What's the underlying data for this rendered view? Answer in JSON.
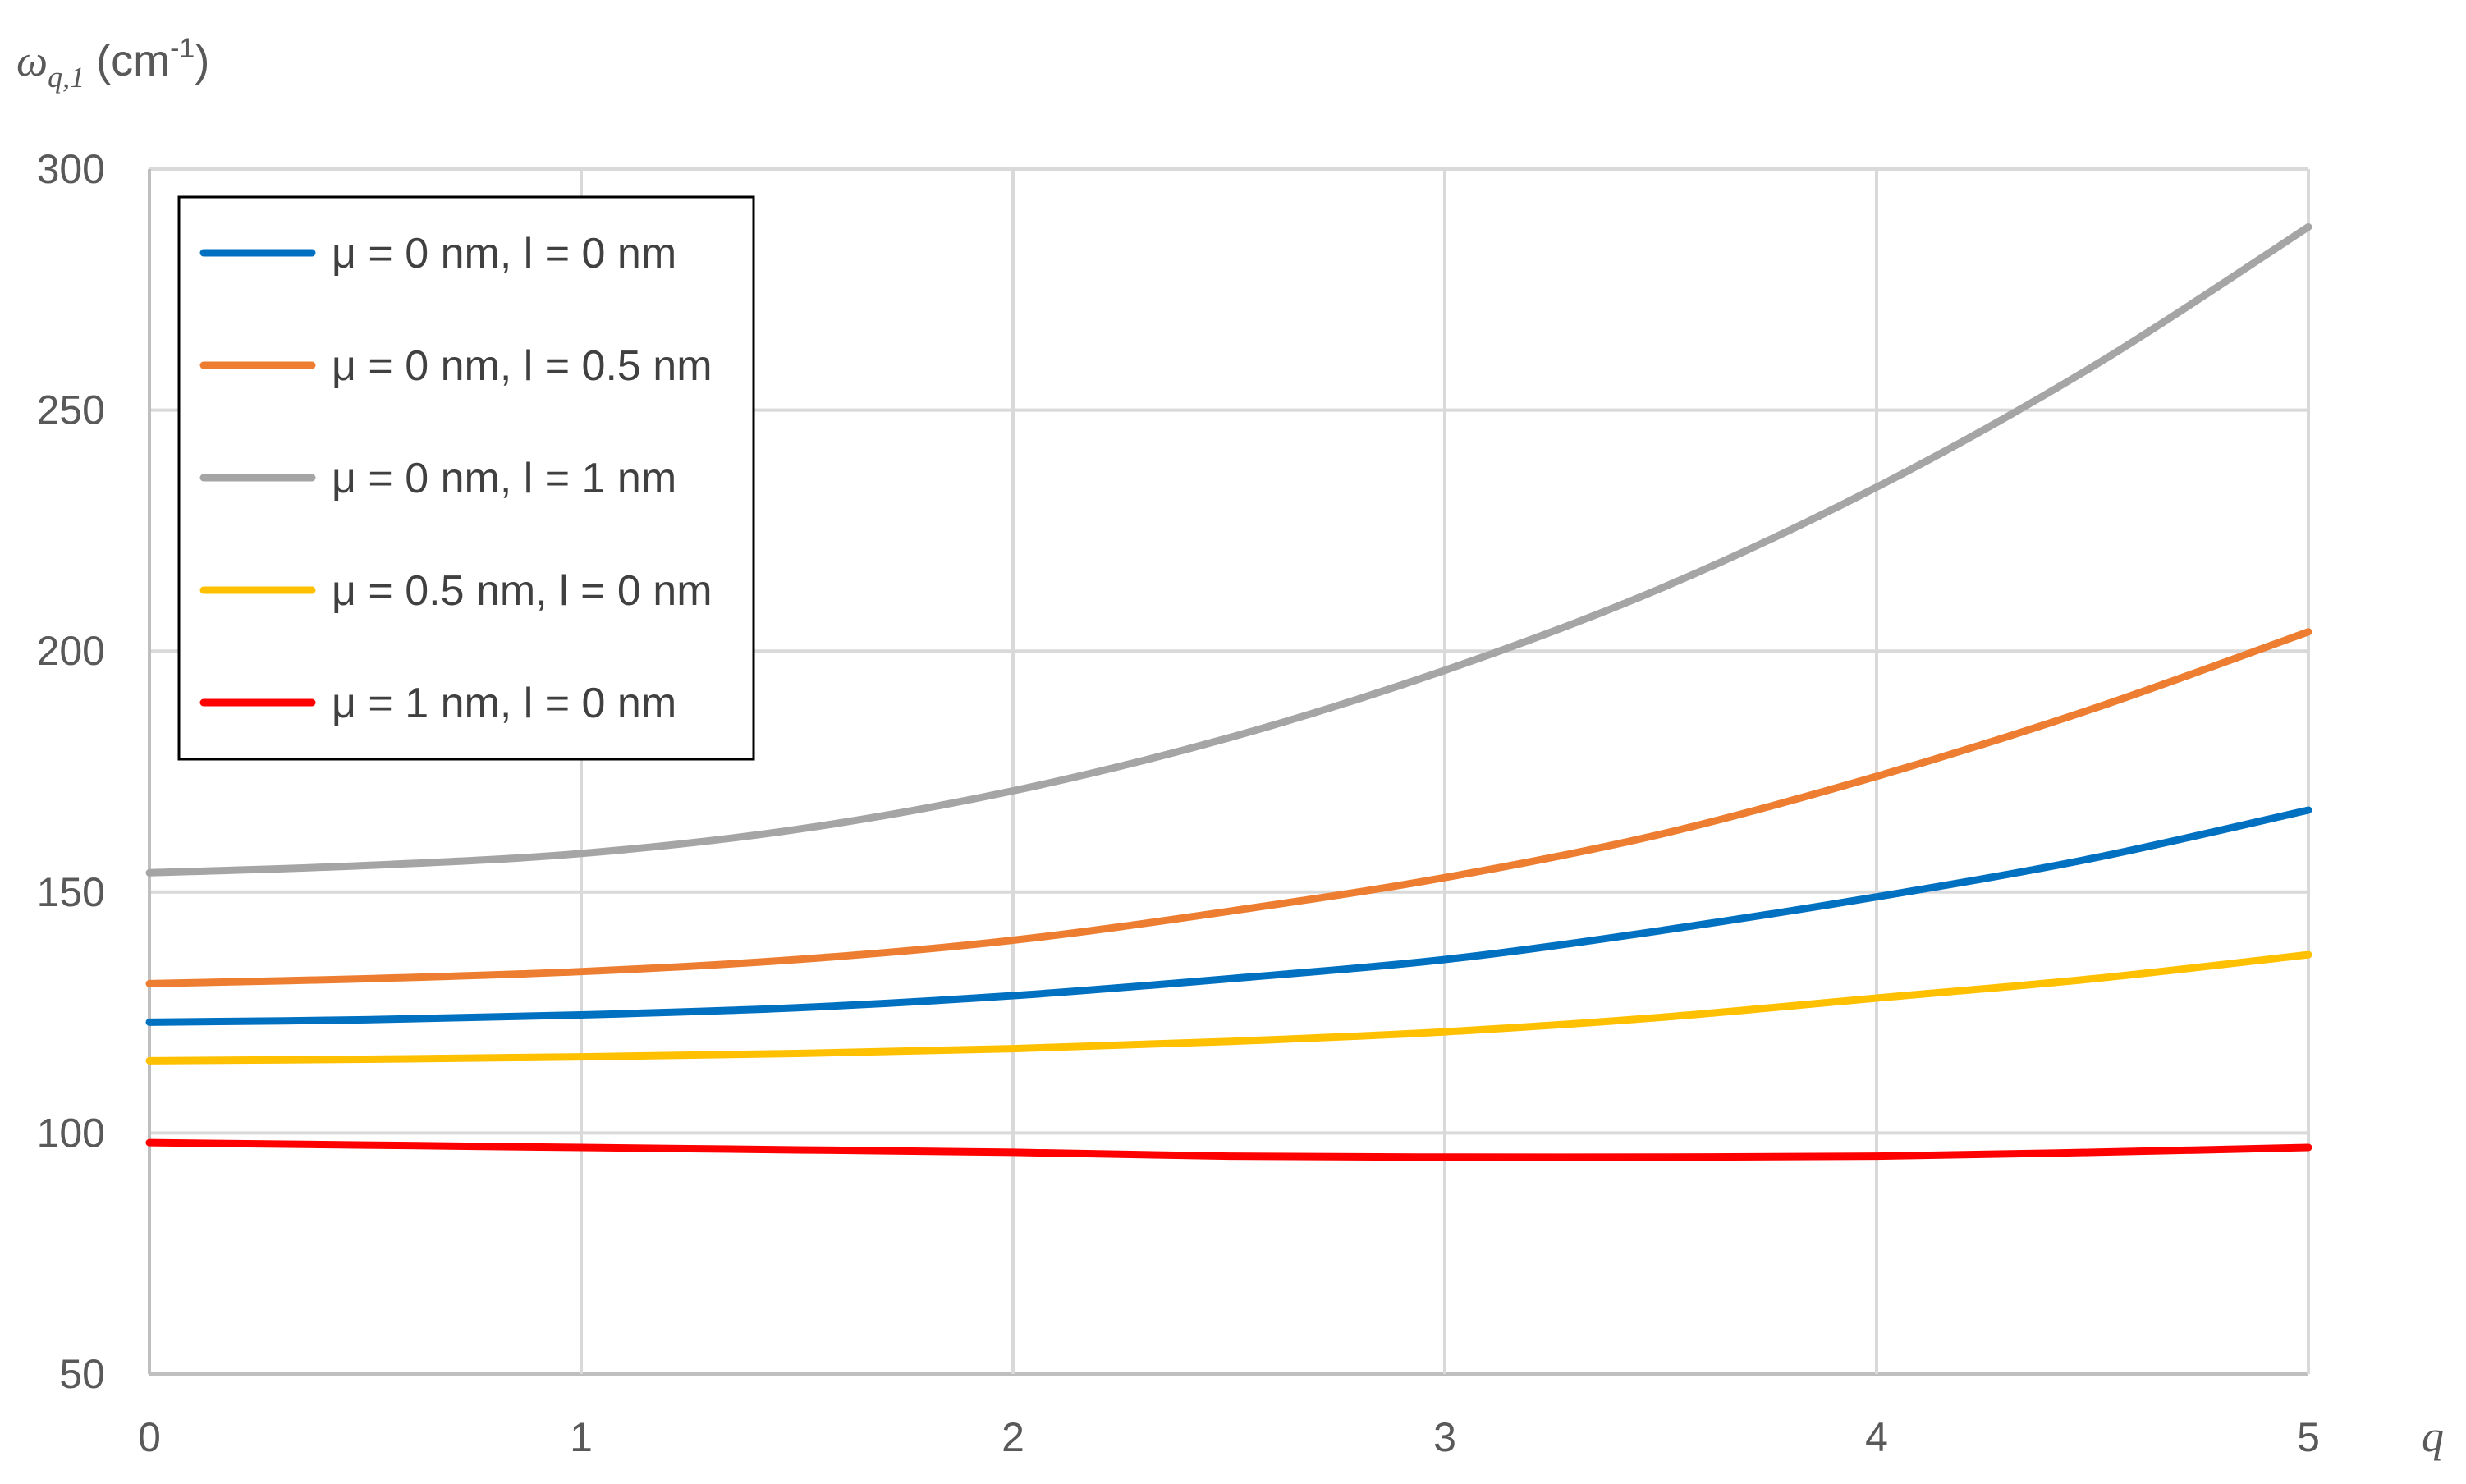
{
  "chart_data": {
    "type": "line",
    "ylabel": {
      "symbol": "ω",
      "subscript": "q,1",
      "unit": "(cm",
      "unit_exp": "-1",
      "unit_close": ")"
    },
    "xlabel": "q",
    "xlim": [
      0,
      5
    ],
    "ylim": [
      50,
      300
    ],
    "x_ticks": [
      "0",
      "1",
      "2",
      "3",
      "4",
      "5"
    ],
    "y_ticks": [
      "50",
      "100",
      "150",
      "200",
      "250",
      "300"
    ],
    "grid": true,
    "legend_position": "top-left",
    "x": [
      0,
      0.5,
      1,
      1.5,
      2,
      2.5,
      3,
      3.5,
      4,
      4.5,
      5
    ],
    "series": [
      {
        "name": "μ = 0 nm, l = 0 nm",
        "color": "#0070c0",
        "values": [
          123,
          123.5,
          124.5,
          126,
          128.5,
          132,
          136,
          142,
          149,
          157,
          167
        ]
      },
      {
        "name": "μ = 0 nm, l = 0.5 nm",
        "color": "#ed7d31",
        "values": [
          131,
          132,
          133.5,
          136,
          140,
          146,
          153,
          162,
          174,
          188,
          204
        ]
      },
      {
        "name": "μ = 0 nm, l = 1 nm",
        "color": "#a5a5a5",
        "values": [
          154,
          155.5,
          158,
          163,
          171,
          182,
          196,
          213,
          234,
          259,
          288
        ]
      },
      {
        "name": "μ = 0.5 nm, l = 0 nm",
        "color": "#ffc000",
        "values": [
          115,
          115.3,
          115.8,
          116.5,
          117.5,
          119,
          121,
          124,
          128,
          132,
          137
        ]
      },
      {
        "name": "μ = 1 nm, l = 0 nm",
        "color": "#ff0000",
        "values": [
          98,
          97.5,
          97,
          96.5,
          96,
          95.2,
          95,
          95,
          95.2,
          96,
          97
        ]
      }
    ]
  }
}
